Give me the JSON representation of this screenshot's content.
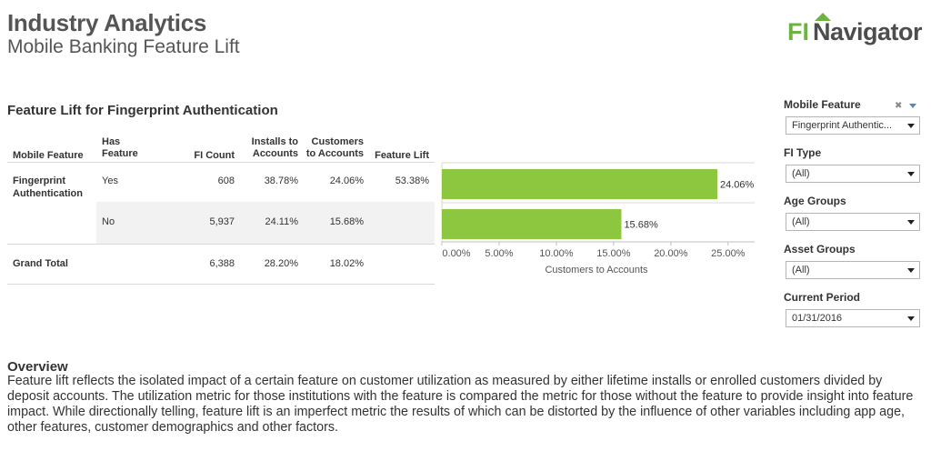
{
  "header": {
    "title": "Industry Analytics",
    "subtitle": "Mobile Banking Feature Lift"
  },
  "logo": {
    "fi": "FI",
    "navigator": "Navigator",
    "brand_green": "#6cb33f",
    "brand_gray": "#4d4d4d"
  },
  "section": {
    "title": "Feature Lift for Fingerprint Authentication"
  },
  "table": {
    "headers": {
      "mobile_feature": "Mobile Feature",
      "has_feature": "Has Feature",
      "fi_count": "FI Count",
      "installs": "Installs to Accounts",
      "customers": "Customers to Accounts",
      "lift": "Feature Lift"
    },
    "feature_name": "Fingerprint Authentication",
    "rows": [
      {
        "has_feature": "Yes",
        "fi_count": "608",
        "installs": "38.78%",
        "customers": "24.06%",
        "lift": "53.38%"
      },
      {
        "has_feature": "No",
        "fi_count": "5,937",
        "installs": "24.11%",
        "customers": "15.68%",
        "lift": ""
      }
    ],
    "total": {
      "label": "Grand Total",
      "fi_count": "6,388",
      "installs": "28.20%",
      "customers": "18.02%"
    }
  },
  "chart_data": {
    "type": "bar",
    "orientation": "horizontal",
    "categories": [
      "Yes",
      "No"
    ],
    "values": [
      24.06,
      15.68
    ],
    "data_labels": [
      "24.06%",
      "15.68%"
    ],
    "xlabel": "Customers to Accounts",
    "xlim": [
      0,
      27
    ],
    "ticks": [
      0,
      5,
      10,
      15,
      20,
      25
    ],
    "tick_labels": [
      "0.00%",
      "5.00%",
      "10.00%",
      "15.00%",
      "20.00%",
      "25.00%"
    ],
    "bar_color": "#8dc63f",
    "grid": false
  },
  "filters": {
    "items": [
      {
        "label": "Mobile Feature",
        "value": "Fingerprint Authentic..."
      },
      {
        "label": "FI Type",
        "value": "(All)"
      },
      {
        "label": "Age Groups",
        "value": "(All)"
      },
      {
        "label": "Asset Groups",
        "value": "(All)"
      },
      {
        "label": "Current Period",
        "value": "01/31/2016"
      }
    ],
    "clear_icon": "clear-filter-icon",
    "menu_icon": "dropdown-menu-icon"
  },
  "overview": {
    "title": "Overview",
    "text": "Feature lift reflects the isolated impact of a certain feature on customer utilization as measured by either lifetime installs or enrolled customers divided by deposit accounts. The utilization metric for those institutions with the feature is compared the metric for those without the feature to provide insight into feature impact. While directionally telling, feature lift is an imperfect metric the results of which can be distorted by the influence of other variables including app age, other features, customer demographics and other factors."
  }
}
